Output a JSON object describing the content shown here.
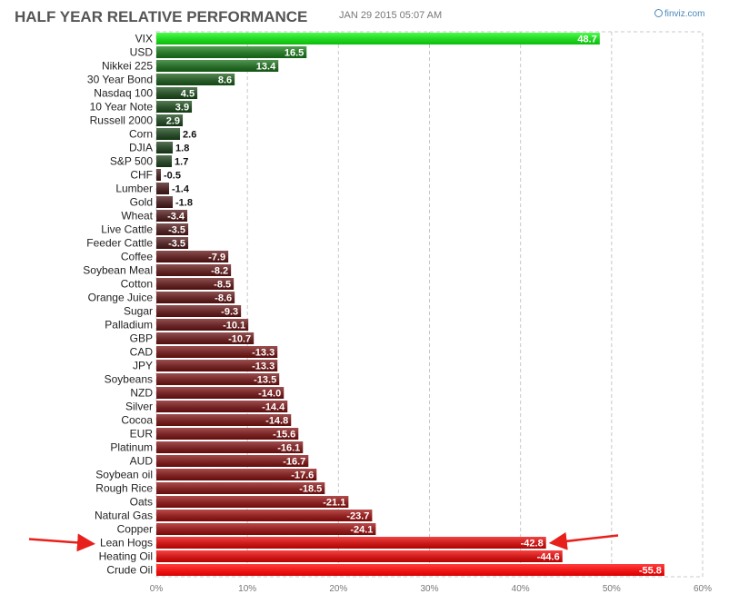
{
  "header": {
    "title": "HALF YEAR RELATIVE PERFORMANCE",
    "timestamp": "JAN 29 2015 05:07 AM",
    "brand": "finviz.com"
  },
  "chart_data": {
    "type": "bar",
    "orientation": "horizontal",
    "title": "HALF YEAR RELATIVE PERFORMANCE",
    "categories": [
      "VIX",
      "USD",
      "Nikkei 225",
      "30 Year Bond",
      "Nasdaq 100",
      "10 Year Note",
      "Russell 2000",
      "Corn",
      "DJIA",
      "S&P 500",
      "CHF",
      "Lumber",
      "Gold",
      "Wheat",
      "Live Cattle",
      "Feeder Cattle",
      "Coffee",
      "Soybean Meal",
      "Cotton",
      "Orange Juice",
      "Sugar",
      "Palladium",
      "GBP",
      "CAD",
      "JPY",
      "Soybeans",
      "NZD",
      "Silver",
      "Cocoa",
      "EUR",
      "Platinum",
      "AUD",
      "Soybean oil",
      "Rough Rice",
      "Oats",
      "Natural Gas",
      "Copper",
      "Lean Hogs",
      "Heating Oil",
      "Crude Oil"
    ],
    "values": [
      48.7,
      16.5,
      13.4,
      8.6,
      4.5,
      3.9,
      2.9,
      2.6,
      1.8,
      1.7,
      -0.5,
      -1.4,
      -1.8,
      -3.4,
      -3.5,
      -3.5,
      -7.9,
      -8.2,
      -8.5,
      -8.6,
      -9.3,
      -10.1,
      -10.7,
      -13.3,
      -13.3,
      -13.5,
      -14.0,
      -14.4,
      -14.8,
      -15.6,
      -16.1,
      -16.7,
      -17.6,
      -18.5,
      -21.1,
      -23.7,
      -24.1,
      -42.8,
      -44.6,
      -55.8
    ],
    "value_labels": [
      "48.7",
      "16.5",
      "13.4",
      "8.6",
      "4.5",
      "3.9",
      "2.9",
      "2.6",
      "1.8",
      "1.7",
      "-0.5",
      "-1.4",
      "-1.8",
      "-3.4",
      "-3.5",
      "-3.5",
      "-7.9",
      "-8.2",
      "-8.5",
      "-8.6",
      "-9.3",
      "-10.1",
      "-10.7",
      "-13.3",
      "-13.3",
      "-13.5",
      "-14.0",
      "-14.4",
      "-14.8",
      "-15.6",
      "-16.1",
      "-16.7",
      "-17.6",
      "-18.5",
      "-21.1",
      "-23.7",
      "-24.1",
      "-42.8",
      "-44.6",
      "-55.8"
    ],
    "xlim": [
      0,
      60
    ],
    "x_ticks": [
      "0%",
      "10%",
      "20%",
      "30%",
      "40%",
      "50%",
      "60%"
    ],
    "x_tick_values": [
      0,
      10,
      20,
      30,
      40,
      50,
      60
    ],
    "bar_length": "absolute value (%)",
    "grid": true,
    "annotations": [
      {
        "type": "arrow",
        "target": "Lean Hogs",
        "side": "left",
        "color": "#e8201c"
      },
      {
        "type": "arrow",
        "target": "Lean Hogs",
        "side": "right",
        "color": "#e8201c"
      }
    ]
  }
}
